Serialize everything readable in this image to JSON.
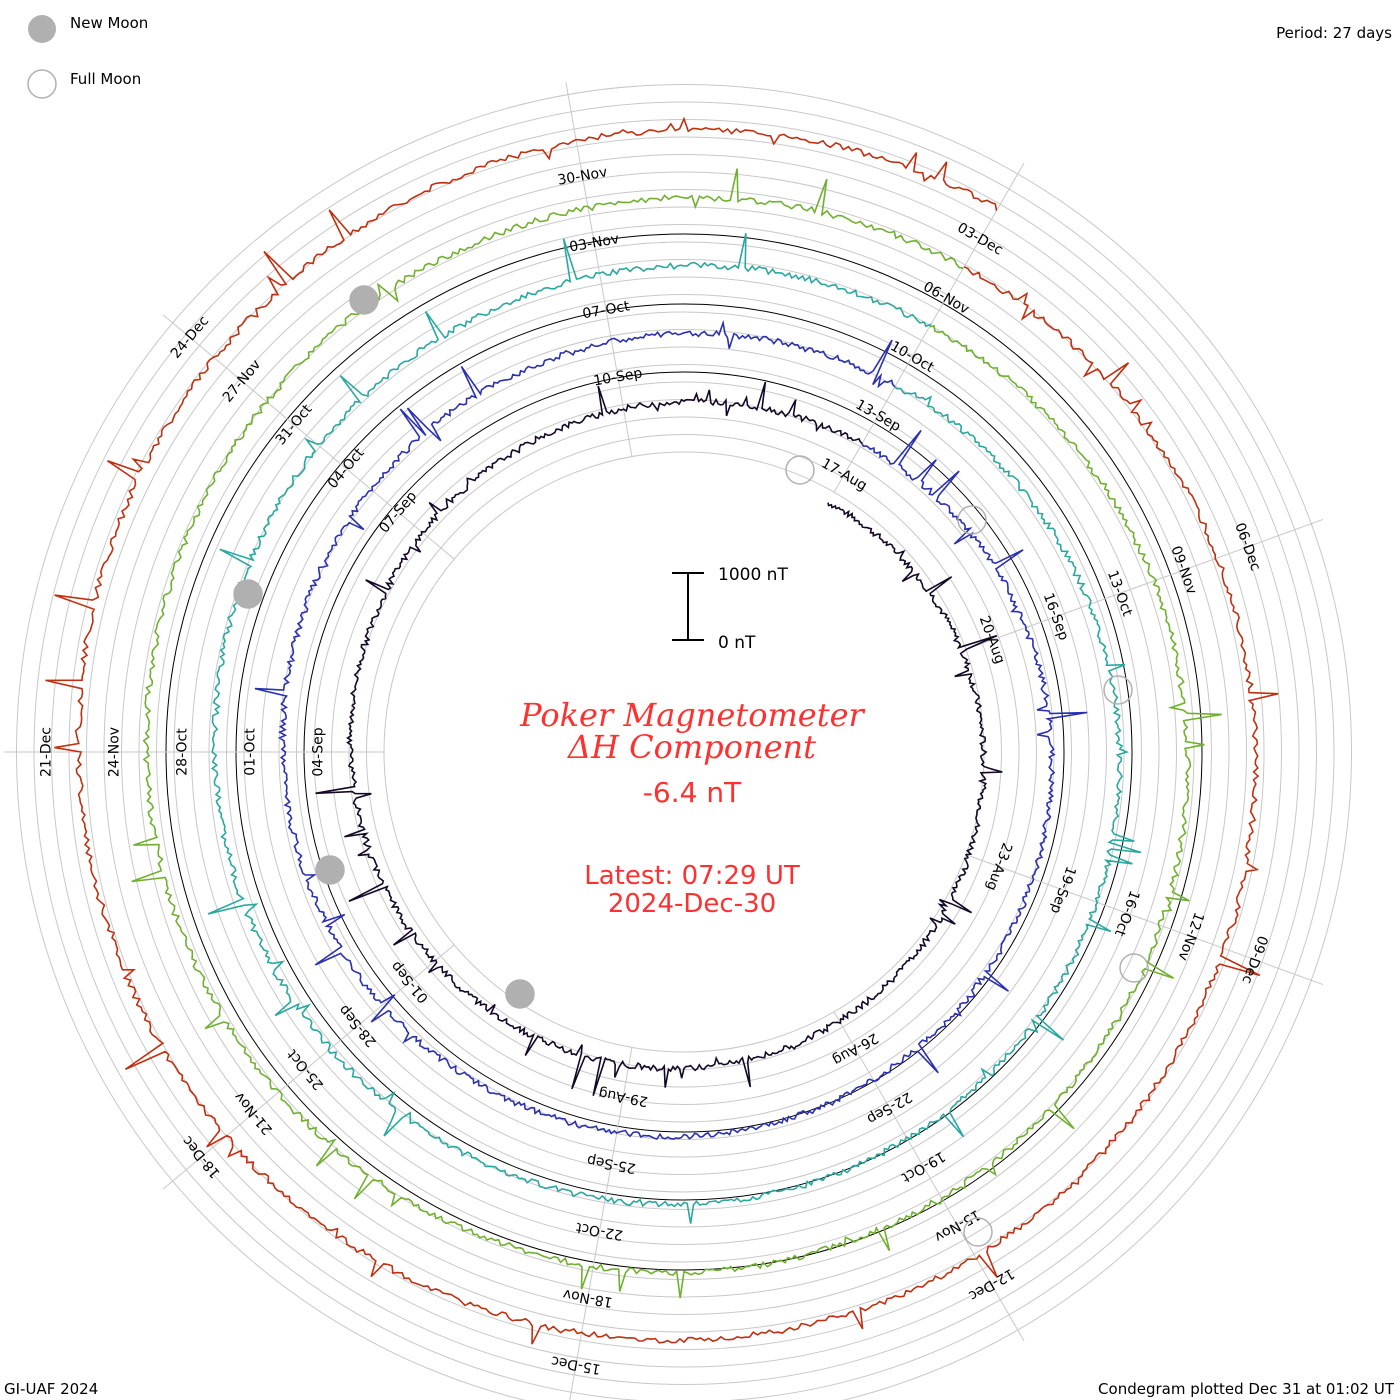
{
  "legend": {
    "new_moon_label": "New Moon",
    "full_moon_label": "Full Moon",
    "moon_color": "#b0b0b0"
  },
  "header": {
    "period": "Period: 27 days"
  },
  "footer": {
    "left": "GI-UAF 2024",
    "right": "Condegram plotted Dec 31 at 01:02 UT"
  },
  "center": {
    "title_line1": "Poker Magnetometer",
    "title_line2": "ΔH Component",
    "current_value": "-6.4 nT",
    "latest_line1": "Latest: 07:29 UT",
    "latest_line2": "2024-Dec-30",
    "scale_top_label": "1000 nT",
    "scale_bottom_label": "0 nT",
    "text_color": "#ff3030"
  },
  "chart_data": {
    "type": "line",
    "title": "Poker Magnetometer ΔH Component",
    "scale_bar_nT": [
      0,
      1000
    ],
    "rotation_period_days": 27,
    "series": [
      {
        "color": "#140828",
        "x": [
          "17-Aug",
          "20-Aug",
          "23-Aug",
          "26-Aug",
          "29-Aug",
          "01-Sep",
          "04-Sep",
          "07-Sep",
          "10-Sep"
        ],
        "tick_labels": [
          "17-Aug",
          "20-Aug",
          "23-Aug",
          "26-Aug",
          "29-Aug",
          "01-Sep",
          "04-Sep",
          "07-Sep",
          "10-Sep"
        ]
      },
      {
        "color": "#2a30b0",
        "x": [
          "13-Sep",
          "16-Sep",
          "19-Sep",
          "22-Sep",
          "25-Sep",
          "28-Sep",
          "01-Oct",
          "04-Oct",
          "07-Oct"
        ],
        "tick_labels": [
          "13-Sep",
          "16-Sep",
          "19-Sep",
          "22-Sep",
          "25-Sep",
          "28-Sep",
          "01-Oct",
          "04-Oct",
          "07-Oct"
        ]
      },
      {
        "color": "#2aa8a0",
        "x": [
          "10-Oct",
          "13-Oct",
          "16-Oct",
          "19-Oct",
          "22-Oct",
          "25-Oct",
          "28-Oct",
          "31-Oct",
          "03-Nov"
        ],
        "tick_labels": [
          "10-Oct",
          "13-Oct",
          "16-Oct",
          "19-Oct",
          "22-Oct",
          "25-Oct",
          "28-Oct",
          "31-Oct",
          "03-Nov"
        ]
      },
      {
        "color": "#70b030",
        "x": [
          "06-Nov",
          "09-Nov",
          "12-Nov",
          "15-Nov",
          "18-Nov",
          "21-Nov",
          "24-Nov",
          "27-Nov",
          "30-Nov"
        ],
        "tick_labels": [
          "06-Nov",
          "09-Nov",
          "12-Nov",
          "15-Nov",
          "18-Nov",
          "21-Nov",
          "24-Nov",
          "27-Nov",
          "30-Nov"
        ]
      },
      {
        "color": "#c03010",
        "x": [
          "03-Dec",
          "06-Dec",
          "09-Dec",
          "12-Dec",
          "15-Dec",
          "18-Dec",
          "21-Dec",
          "24-Dec"
        ],
        "tick_labels": [
          "03-Dec",
          "06-Dec",
          "09-Dec",
          "12-Dec",
          "15-Dec",
          "18-Dec",
          "21-Dec",
          "24-Dec"
        ]
      }
    ],
    "moon_markers": {
      "new": [
        "04-Sep",
        "02-Oct",
        "01-Nov",
        "01-Dec"
      ],
      "full": [
        "18-Sep",
        "17-Oct",
        "15-Nov",
        "15-Dec"
      ]
    }
  }
}
